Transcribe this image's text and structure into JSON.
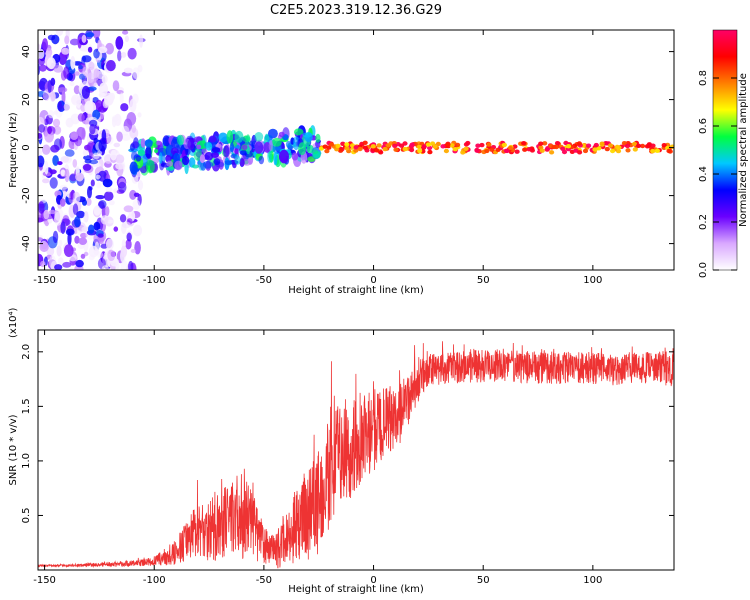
{
  "title": "C2E5.2023.319.12.36.G29",
  "chart_data": [
    {
      "type": "heatmap",
      "xlabel": "Height of straight line (km)",
      "ylabel": "Frequency (Hz)",
      "xlim": [
        -153,
        137
      ],
      "ylim": [
        -51,
        49
      ],
      "x_ticks": [
        -150,
        -100,
        -50,
        0,
        50,
        100
      ],
      "y_ticks": [
        -40,
        -20,
        0,
        20,
        40
      ],
      "colorbar": {
        "label": "Normalized spectral amplitude",
        "range": [
          0,
          1
        ],
        "ticks": [
          0.0,
          0.2,
          0.4,
          0.6,
          0.8
        ],
        "colors": [
          "#ffffff",
          "#d9a8ff",
          "#6a00ff",
          "#0000ff",
          "#00c8ff",
          "#00ff40",
          "#ffff00",
          "#ff7f00",
          "#ff0000",
          "#ff0066"
        ]
      },
      "clusters": [
        {
          "x_range": [
            -153,
            -120
          ],
          "y_range": [
            -51,
            49
          ],
          "amplitude": 0.15
        },
        {
          "x_range": [
            -120,
            -105
          ],
          "y_range": [
            -51,
            49
          ],
          "amplitude": 0.05
        },
        {
          "x_range": [
            -110,
            -25
          ],
          "y_range": [
            -10,
            10
          ],
          "amplitude": 0.35
        },
        {
          "x_range": [
            -25,
            137
          ],
          "y_range": [
            -2,
            2
          ],
          "amplitude": 0.85
        }
      ]
    },
    {
      "type": "line",
      "xlabel": "Height of straight line (km)",
      "ylabel": "SNR (10 * v/v)",
      "y_scale_label": "(x10⁴)",
      "xlim": [
        -153,
        137
      ],
      "ylim": [
        0,
        2.2
      ],
      "x_ticks": [
        -150,
        -100,
        -50,
        0,
        50,
        100
      ],
      "y_ticks": [
        0.5,
        1.0,
        1.5,
        2.0
      ],
      "y_tick_labels": [
        "0.5",
        "1.0",
        "1.5",
        "2.0"
      ],
      "color": "#ee3333",
      "series": [
        {
          "x": [
            -153,
            -140,
            -125,
            -110,
            -100,
            -95,
            -90,
            -85,
            -80,
            -75,
            -70,
            -65,
            -60,
            -55,
            -50,
            -45,
            -40,
            -35,
            -30,
            -25,
            -20,
            -15,
            -10,
            -5,
            0,
            5,
            10,
            15,
            20,
            25,
            30,
            40,
            50,
            60,
            70,
            80,
            90,
            100,
            110,
            120,
            130,
            137
          ],
          "y": [
            0.04,
            0.04,
            0.05,
            0.06,
            0.08,
            0.12,
            0.16,
            0.28,
            0.42,
            0.38,
            0.4,
            0.48,
            0.5,
            0.4,
            0.22,
            0.15,
            0.28,
            0.42,
            0.5,
            0.65,
            0.95,
            1.1,
            1.1,
            1.2,
            1.28,
            1.32,
            1.4,
            1.5,
            1.72,
            1.82,
            1.85,
            1.86,
            1.87,
            1.88,
            1.86,
            1.85,
            1.86,
            1.85,
            1.84,
            1.85,
            1.85,
            1.86
          ],
          "noise": [
            0.01,
            0.01,
            0.02,
            0.03,
            0.04,
            0.08,
            0.12,
            0.2,
            0.28,
            0.3,
            0.32,
            0.35,
            0.4,
            0.3,
            0.18,
            0.16,
            0.25,
            0.35,
            0.45,
            0.5,
            0.55,
            0.5,
            0.45,
            0.4,
            0.38,
            0.35,
            0.3,
            0.25,
            0.2,
            0.15,
            0.15,
            0.15,
            0.15,
            0.15,
            0.15,
            0.15,
            0.15,
            0.15,
            0.15,
            0.15,
            0.15,
            0.18
          ]
        }
      ]
    }
  ]
}
